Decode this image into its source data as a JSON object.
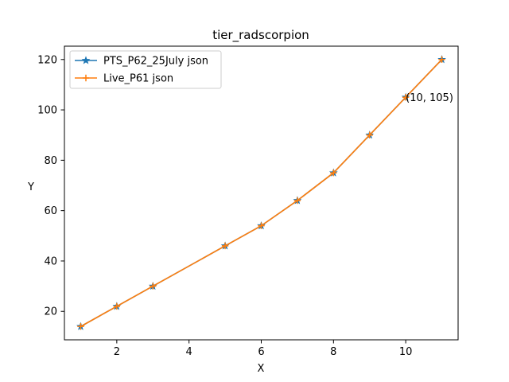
{
  "chart_data": {
    "type": "line",
    "title": "tier_radscorpion",
    "xlabel": "X",
    "ylabel": "Y",
    "xlim": [
      0.55,
      11.45
    ],
    "ylim": [
      8.7,
      125.3
    ],
    "xticks": [
      2,
      4,
      6,
      8,
      10
    ],
    "yticks": [
      20,
      40,
      60,
      80,
      100,
      120
    ],
    "grid": false,
    "legend_position": "upper-left",
    "series": [
      {
        "name": "PTS_P62_25July json",
        "color": "#1f77b4",
        "marker": "star",
        "x": [
          1,
          2,
          3,
          5,
          6,
          7,
          8,
          9,
          10,
          11
        ],
        "y": [
          14,
          22,
          30,
          46,
          54,
          64,
          75,
          90,
          105,
          120
        ]
      },
      {
        "name": "Live_P61 json",
        "color": "#ff7f0e",
        "marker": "plus",
        "x": [
          1,
          2,
          3,
          5,
          6,
          7,
          8,
          9,
          10,
          11
        ],
        "y": [
          14,
          22,
          30,
          46,
          54,
          64,
          75,
          90,
          105,
          120
        ]
      }
    ],
    "annotations": [
      {
        "text": "(10, 105)",
        "x": 10,
        "y": 105
      }
    ]
  }
}
